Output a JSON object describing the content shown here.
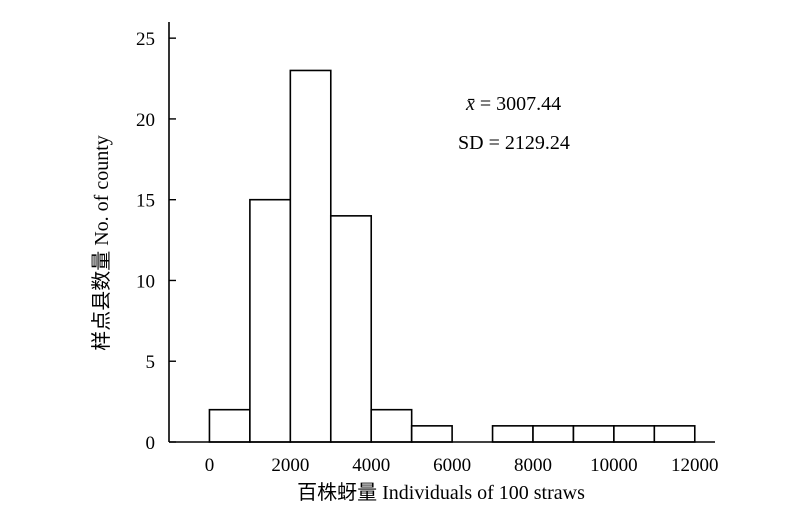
{
  "chart_data": {
    "type": "bar",
    "title": "",
    "xlabel": "百株蚜量 Individuals of 100 straws",
    "ylabel": "样点县数量 No. of county",
    "xlim": [
      -1000,
      12500
    ],
    "ylim": [
      0,
      26
    ],
    "bin_width": 1000,
    "bins": [
      {
        "start": 0,
        "end": 1000,
        "count": 2
      },
      {
        "start": 1000,
        "end": 2000,
        "count": 15
      },
      {
        "start": 2000,
        "end": 3000,
        "count": 23
      },
      {
        "start": 3000,
        "end": 4000,
        "count": 14
      },
      {
        "start": 4000,
        "end": 5000,
        "count": 2
      },
      {
        "start": 5000,
        "end": 6000,
        "count": 1
      },
      {
        "start": 6000,
        "end": 7000,
        "count": 0
      },
      {
        "start": 7000,
        "end": 8000,
        "count": 1
      },
      {
        "start": 8000,
        "end": 9000,
        "count": 1
      },
      {
        "start": 9000,
        "end": 10000,
        "count": 1
      },
      {
        "start": 10000,
        "end": 11000,
        "count": 1
      },
      {
        "start": 11000,
        "end": 12000,
        "count": 1
      }
    ],
    "x_ticks": [
      0,
      2000,
      4000,
      6000,
      8000,
      10000,
      12000
    ],
    "y_ticks": [
      0,
      5,
      10,
      15,
      20,
      25
    ],
    "grid": false,
    "annotations": {
      "mean_symbol": "x̄",
      "mean_value": " = 3007.44",
      "sd_text": "SD = 2129.24"
    }
  }
}
